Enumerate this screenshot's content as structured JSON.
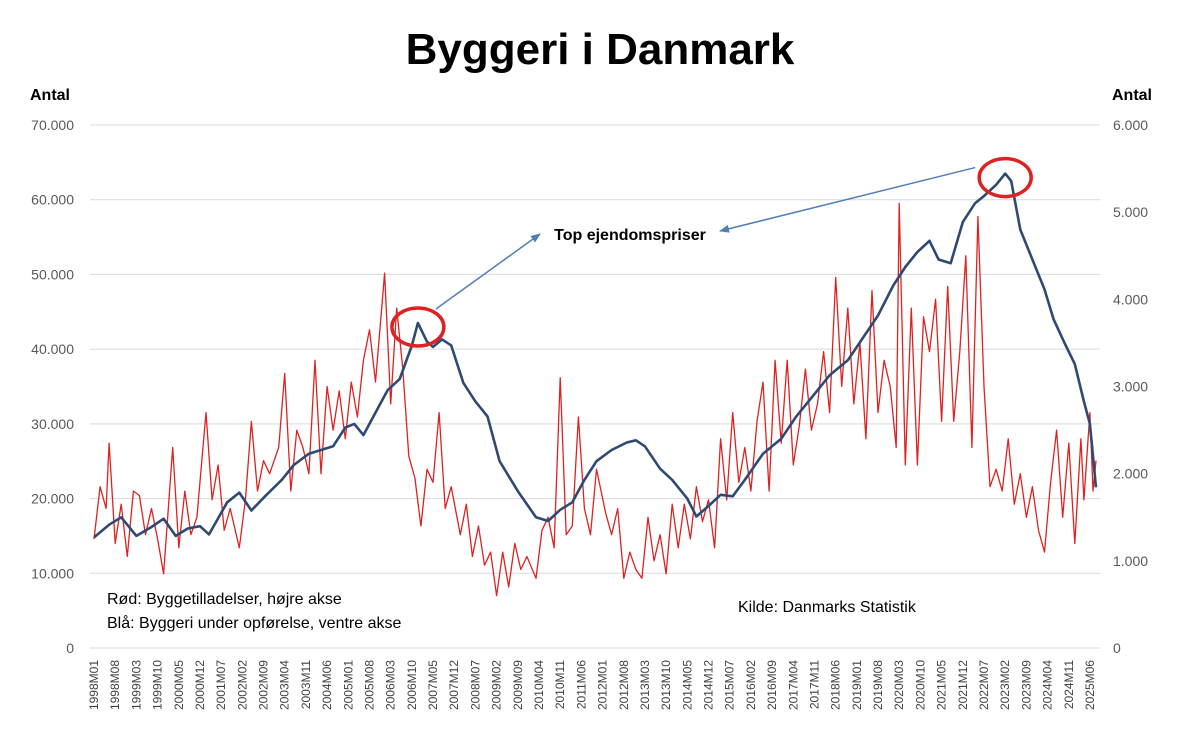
{
  "chart_data": {
    "type": "line",
    "title": "Byggeri i Danmark",
    "left_axis_label": "Antal",
    "right_axis_label": "Antal",
    "left_ylim": [
      0,
      70000
    ],
    "right_ylim": [
      0,
      6000
    ],
    "left_ticks": [
      "0",
      "10.000",
      "20.000",
      "30.000",
      "40.000",
      "50.000",
      "60.000",
      "70.000"
    ],
    "right_ticks": [
      "0",
      "1.000",
      "2.000",
      "3.000",
      "4.000",
      "5.000",
      "6.000"
    ],
    "grid": true,
    "x_start": "1998M01",
    "x_end": "2025M08",
    "x_tick_labels": [
      "1998M01",
      "1998M08",
      "1999M03",
      "1999M10",
      "2000M05",
      "2000M12",
      "2001M07",
      "2002M02",
      "2002M09",
      "2003M04",
      "2003M11",
      "2004M06",
      "2005M01",
      "2005M08",
      "2006M03",
      "2006M10",
      "2007M05",
      "2007M12",
      "2008M07",
      "2009M02",
      "2009M09",
      "2010M04",
      "2010M11",
      "2011M06",
      "2012M01",
      "2012M08",
      "2013M03",
      "2013M10",
      "2014M05",
      "2014M12",
      "2015M07",
      "2016M02",
      "2016M09",
      "2017M04",
      "2017M11",
      "2018M06",
      "2019M01",
      "2019M08",
      "2020M03",
      "2020M10",
      "2021M05",
      "2021M12",
      "2022M07",
      "2023M02",
      "2023M09",
      "2024M04",
      "2024M11",
      "2025M06"
    ],
    "series": [
      {
        "name": "Byggeri under opførelse",
        "axis": "left",
        "color": "#2e4a73",
        "points": [
          [
            "1998M01",
            14800
          ],
          [
            "1998M06",
            16500
          ],
          [
            "1998M10",
            17500
          ],
          [
            "1999M03",
            15000
          ],
          [
            "1999M08",
            16200
          ],
          [
            "1999M12",
            17300
          ],
          [
            "2000M04",
            15000
          ],
          [
            "2000M08",
            16000
          ],
          [
            "2000M12",
            16300
          ],
          [
            "2001M03",
            15200
          ],
          [
            "2001M09",
            19500
          ],
          [
            "2002M01",
            20800
          ],
          [
            "2002M05",
            18400
          ],
          [
            "2002M10",
            20500
          ],
          [
            "2003M03",
            22500
          ],
          [
            "2003M07",
            24500
          ],
          [
            "2003M12",
            26000
          ],
          [
            "2004M04",
            26500
          ],
          [
            "2004M08",
            27000
          ],
          [
            "2004M12",
            29500
          ],
          [
            "2005M03",
            30000
          ],
          [
            "2005M06",
            28500
          ],
          [
            "2005M10",
            31500
          ],
          [
            "2006M02",
            34500
          ],
          [
            "2006M06",
            36000
          ],
          [
            "2006M10",
            40500
          ],
          [
            "2006M12",
            43500
          ],
          [
            "2007M03",
            41000
          ],
          [
            "2007M05",
            40300
          ],
          [
            "2007M08",
            41300
          ],
          [
            "2007M11",
            40500
          ],
          [
            "2008M03",
            35500
          ],
          [
            "2008M07",
            33000
          ],
          [
            "2008M11",
            31000
          ],
          [
            "2009M03",
            25000
          ],
          [
            "2009M09",
            21000
          ],
          [
            "2010M03",
            17500
          ],
          [
            "2010M07",
            17000
          ],
          [
            "2010M11",
            18500
          ],
          [
            "2011M03",
            19500
          ],
          [
            "2011M07",
            22500
          ],
          [
            "2011M11",
            25000
          ],
          [
            "2012M04",
            26500
          ],
          [
            "2012M09",
            27500
          ],
          [
            "2012M12",
            27800
          ],
          [
            "2013M03",
            27000
          ],
          [
            "2013M08",
            24000
          ],
          [
            "2013M12",
            22500
          ],
          [
            "2014M05",
            20000
          ],
          [
            "2014M08",
            17600
          ],
          [
            "2014M12",
            19000
          ],
          [
            "2015M04",
            20500
          ],
          [
            "2015M08",
            20300
          ],
          [
            "2015M12",
            22500
          ],
          [
            "2016M06",
            26000
          ],
          [
            "2016M12",
            28000
          ],
          [
            "2017M05",
            31000
          ],
          [
            "2017M11",
            34000
          ],
          [
            "2018M04",
            36500
          ],
          [
            "2018M10",
            38500
          ],
          [
            "2019M03",
            41500
          ],
          [
            "2019M08",
            44500
          ],
          [
            "2020M01",
            48500
          ],
          [
            "2020M05",
            51000
          ],
          [
            "2020M09",
            53000
          ],
          [
            "2021M01",
            54500
          ],
          [
            "2021M04",
            52000
          ],
          [
            "2021M08",
            51500
          ],
          [
            "2021M12",
            57000
          ],
          [
            "2022M04",
            59500
          ],
          [
            "2022M07",
            60500
          ],
          [
            "2022M11",
            62000
          ],
          [
            "2023M02",
            63500
          ],
          [
            "2023M04",
            62500
          ],
          [
            "2023M07",
            56000
          ],
          [
            "2023M11",
            52000
          ],
          [
            "2024M03",
            48000
          ],
          [
            "2024M06",
            44000
          ],
          [
            "2024M10",
            40500
          ],
          [
            "2025M01",
            38000
          ],
          [
            "2025M04",
            33000
          ],
          [
            "2025M06",
            30000
          ],
          [
            "2025M08",
            21500
          ]
        ]
      },
      {
        "name": "Byggetilladelser",
        "axis": "right",
        "color": "#dd2222",
        "points": [
          [
            "1998M01",
            1250
          ],
          [
            "1998M03",
            1850
          ],
          [
            "1998M05",
            1600
          ],
          [
            "1998M06",
            2350
          ],
          [
            "1998M08",
            1200
          ],
          [
            "1998M10",
            1650
          ],
          [
            "1998M12",
            1050
          ],
          [
            "1999M02",
            1800
          ],
          [
            "1999M04",
            1750
          ],
          [
            "1999M06",
            1300
          ],
          [
            "1999M08",
            1600
          ],
          [
            "1999M10",
            1250
          ],
          [
            "1999M12",
            850
          ],
          [
            "2000M03",
            2300
          ],
          [
            "2000M05",
            1150
          ],
          [
            "2000M07",
            1800
          ],
          [
            "2000M09",
            1300
          ],
          [
            "2000M11",
            1500
          ],
          [
            "2001M02",
            2700
          ],
          [
            "2001M04",
            1700
          ],
          [
            "2001M06",
            2100
          ],
          [
            "2001M08",
            1350
          ],
          [
            "2001M10",
            1600
          ],
          [
            "2002M01",
            1150
          ],
          [
            "2002M03",
            1700
          ],
          [
            "2002M05",
            2600
          ],
          [
            "2002M07",
            1800
          ],
          [
            "2002M09",
            2150
          ],
          [
            "2002M11",
            2000
          ],
          [
            "2003M02",
            2300
          ],
          [
            "2003M04",
            3150
          ],
          [
            "2003M06",
            1800
          ],
          [
            "2003M08",
            2500
          ],
          [
            "2003M10",
            2300
          ],
          [
            "2003M12",
            2000
          ],
          [
            "2004M02",
            3300
          ],
          [
            "2004M04",
            2000
          ],
          [
            "2004M06",
            3000
          ],
          [
            "2004M08",
            2500
          ],
          [
            "2004M10",
            2950
          ],
          [
            "2004M12",
            2400
          ],
          [
            "2005M02",
            3050
          ],
          [
            "2005M04",
            2650
          ],
          [
            "2005M06",
            3300
          ],
          [
            "2005M08",
            3650
          ],
          [
            "2005M10",
            3050
          ],
          [
            "2006M01",
            4300
          ],
          [
            "2006M03",
            2800
          ],
          [
            "2006M05",
            3900
          ],
          [
            "2006M07",
            3200
          ],
          [
            "2006M09",
            2200
          ],
          [
            "2006M11",
            1950
          ],
          [
            "2007M01",
            1400
          ],
          [
            "2007M03",
            2050
          ],
          [
            "2007M05",
            1900
          ],
          [
            "2007M07",
            2700
          ],
          [
            "2007M09",
            1600
          ],
          [
            "2007M11",
            1850
          ],
          [
            "2008M02",
            1300
          ],
          [
            "2008M04",
            1650
          ],
          [
            "2008M06",
            1050
          ],
          [
            "2008M08",
            1400
          ],
          [
            "2008M10",
            950
          ],
          [
            "2008M12",
            1100
          ],
          [
            "2009M02",
            600
          ],
          [
            "2009M04",
            1100
          ],
          [
            "2009M06",
            700
          ],
          [
            "2009M08",
            1200
          ],
          [
            "2009M10",
            900
          ],
          [
            "2009M12",
            1050
          ],
          [
            "2010M03",
            800
          ],
          [
            "2010M05",
            1350
          ],
          [
            "2010M07",
            1500
          ],
          [
            "2010M09",
            1150
          ],
          [
            "2010M11",
            3100
          ],
          [
            "2011M01",
            1300
          ],
          [
            "2011M03",
            1400
          ],
          [
            "2011M05",
            2650
          ],
          [
            "2011M07",
            1600
          ],
          [
            "2011M09",
            1300
          ],
          [
            "2011M11",
            2050
          ],
          [
            "2012M02",
            1550
          ],
          [
            "2012M04",
            1300
          ],
          [
            "2012M06",
            1600
          ],
          [
            "2012M08",
            800
          ],
          [
            "2012M10",
            1100
          ],
          [
            "2012M12",
            900
          ],
          [
            "2013M02",
            800
          ],
          [
            "2013M04",
            1500
          ],
          [
            "2013M06",
            1000
          ],
          [
            "2013M08",
            1300
          ],
          [
            "2013M10",
            850
          ],
          [
            "2013M12",
            1650
          ],
          [
            "2014M02",
            1150
          ],
          [
            "2014M04",
            1650
          ],
          [
            "2014M06",
            1250
          ],
          [
            "2014M08",
            1850
          ],
          [
            "2014M10",
            1450
          ],
          [
            "2014M12",
            1700
          ],
          [
            "2015M02",
            1150
          ],
          [
            "2015M04",
            2400
          ],
          [
            "2015M06",
            1700
          ],
          [
            "2015M08",
            2700
          ],
          [
            "2015M10",
            1900
          ],
          [
            "2015M12",
            2300
          ],
          [
            "2016M02",
            1800
          ],
          [
            "2016M04",
            2600
          ],
          [
            "2016M06",
            3050
          ],
          [
            "2016M08",
            1800
          ],
          [
            "2016M10",
            3300
          ],
          [
            "2016M12",
            2350
          ],
          [
            "2017M02",
            3300
          ],
          [
            "2017M04",
            2100
          ],
          [
            "2017M06",
            2550
          ],
          [
            "2017M08",
            3200
          ],
          [
            "2017M10",
            2500
          ],
          [
            "2017M12",
            2800
          ],
          [
            "2018M02",
            3400
          ],
          [
            "2018M04",
            2700
          ],
          [
            "2018M06",
            4250
          ],
          [
            "2018M08",
            3000
          ],
          [
            "2018M10",
            3900
          ],
          [
            "2018M12",
            2800
          ],
          [
            "2019M02",
            3500
          ],
          [
            "2019M04",
            2400
          ],
          [
            "2019M06",
            4100
          ],
          [
            "2019M08",
            2700
          ],
          [
            "2019M10",
            3300
          ],
          [
            "2019M12",
            3000
          ],
          [
            "2020M02",
            2300
          ],
          [
            "2020M03",
            5100
          ],
          [
            "2020M05",
            2100
          ],
          [
            "2020M07",
            3900
          ],
          [
            "2020M09",
            2100
          ],
          [
            "2020M11",
            3800
          ],
          [
            "2021M01",
            3400
          ],
          [
            "2021M03",
            4000
          ],
          [
            "2021M05",
            2600
          ],
          [
            "2021M07",
            4150
          ],
          [
            "2021M09",
            2600
          ],
          [
            "2021M11",
            3400
          ],
          [
            "2022M01",
            4500
          ],
          [
            "2022M03",
            2300
          ],
          [
            "2022M05",
            4950
          ],
          [
            "2022M07",
            3000
          ],
          [
            "2022M09",
            1850
          ],
          [
            "2022M11",
            2050
          ],
          [
            "2023M01",
            1800
          ],
          [
            "2023M03",
            2400
          ],
          [
            "2023M05",
            1650
          ],
          [
            "2023M07",
            2000
          ],
          [
            "2023M09",
            1500
          ],
          [
            "2023M11",
            1850
          ],
          [
            "2024M01",
            1350
          ],
          [
            "2024M03",
            1100
          ],
          [
            "2024M05",
            1900
          ],
          [
            "2024M07",
            2500
          ],
          [
            "2024M09",
            1500
          ],
          [
            "2024M11",
            2350
          ],
          [
            "2025M01",
            1200
          ],
          [
            "2025M03",
            2400
          ],
          [
            "2025M04",
            1700
          ],
          [
            "2025M06",
            2700
          ],
          [
            "2025M07",
            1800
          ],
          [
            "2025M08",
            2150
          ]
        ]
      }
    ],
    "notes": [
      "Rød: Byggetilladelser, højre akse",
      "Blå: Byggeri under opførelse, ventre akse"
    ],
    "source": "Kilde: Danmarks Statistik",
    "annotation": "Top ejendomspriser",
    "annotation_targets": [
      "2006M12",
      "2023M02"
    ],
    "annotation_color": "#4f7fb8",
    "highlight_color": "#dd2222"
  }
}
